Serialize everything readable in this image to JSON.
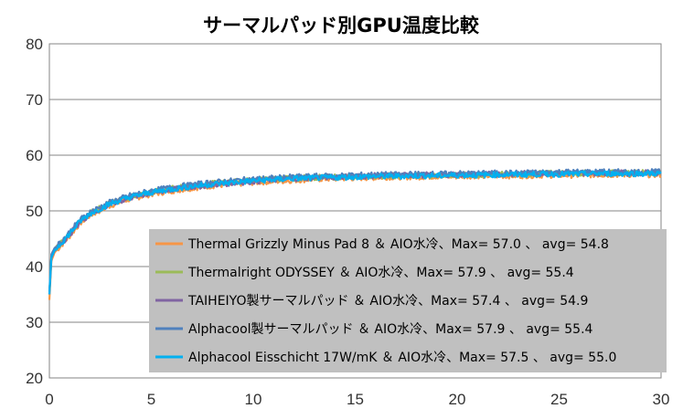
{
  "chart_data": {
    "type": "line",
    "title": "サーマルパッド別GPU温度比較",
    "xlabel": "",
    "ylabel": "",
    "xlim": [
      0,
      30
    ],
    "ylim": [
      20,
      80
    ],
    "x_ticks": [
      "0",
      "5",
      "10",
      "15",
      "20",
      "25",
      "30"
    ],
    "y_ticks": [
      "20",
      "30",
      "40",
      "50",
      "60",
      "70",
      "80"
    ],
    "grid": "horizontal",
    "legend_position": "bottom-right",
    "x": [
      0,
      0.1,
      0.25,
      0.5,
      1,
      1.5,
      2,
      3,
      4,
      5,
      6,
      7,
      8,
      9,
      10,
      11,
      12,
      13,
      14,
      15,
      16,
      17,
      18,
      19,
      20,
      21,
      22,
      23,
      24,
      25,
      26,
      27,
      28,
      29,
      30
    ],
    "series": [
      {
        "name": "Thermal Grizzly Minus Pad 8 ＆ AIO水冷、Max= 57.0 、 avg= 54.8",
        "color": "#f79646",
        "values": [
          34.0,
          41.0,
          42.5,
          43.5,
          45.5,
          47.8,
          49.2,
          51.0,
          52.2,
          53.0,
          53.6,
          54.1,
          54.5,
          54.8,
          55.1,
          55.3,
          55.5,
          55.7,
          55.8,
          55.9,
          56.0,
          56.1,
          56.1,
          56.2,
          56.2,
          56.3,
          56.3,
          56.3,
          56.4,
          56.4,
          56.4,
          56.5,
          56.5,
          56.5,
          56.5
        ]
      },
      {
        "name": "Thermalright ODYSSEY ＆ AIO水冷、Max= 57.9 、 avg= 55.4",
        "color": "#9bbb59",
        "values": [
          35.0,
          41.8,
          43.0,
          44.0,
          46.0,
          48.2,
          49.6,
          51.4,
          52.6,
          53.4,
          54.0,
          54.5,
          54.9,
          55.2,
          55.5,
          55.7,
          55.9,
          56.0,
          56.1,
          56.2,
          56.3,
          56.3,
          56.4,
          56.4,
          56.5,
          56.5,
          56.6,
          56.6,
          56.7,
          56.8,
          56.8,
          56.8,
          56.8,
          56.9,
          56.9
        ]
      },
      {
        "name": "TAIHEIYO製サーマルパッド ＆ AIO水冷、Max= 57.4 、 avg= 54.9",
        "color": "#8064a2",
        "values": [
          35.0,
          41.5,
          42.8,
          43.8,
          45.8,
          48.0,
          49.4,
          51.2,
          52.4,
          53.2,
          53.8,
          54.3,
          54.7,
          55.0,
          55.3,
          55.6,
          55.8,
          56.0,
          56.1,
          56.2,
          56.3,
          56.4,
          56.4,
          56.5,
          56.5,
          56.6,
          56.6,
          56.7,
          56.7,
          56.8,
          56.8,
          56.8,
          56.8,
          56.8,
          56.9
        ]
      },
      {
        "name": "Alphacool製サーマルパッド ＆ AIO水冷、Max= 57.9 、 avg= 55.4",
        "color": "#4f81bd",
        "values": [
          35.5,
          42.2,
          43.3,
          44.2,
          46.2,
          48.4,
          49.8,
          51.6,
          52.8,
          53.6,
          54.2,
          54.7,
          55.1,
          55.4,
          55.7,
          55.9,
          56.1,
          56.2,
          56.3,
          56.4,
          56.5,
          56.5,
          56.6,
          56.6,
          56.7,
          56.7,
          56.8,
          56.8,
          56.9,
          57.0,
          57.0,
          57.0,
          57.0,
          57.0,
          57.0
        ]
      },
      {
        "name": "Alphacool Eisschicht 17W/mK ＆ AIO水冷、Max= 57.5 、 avg= 55.0",
        "color": "#00b0f0",
        "values": [
          35.0,
          41.6,
          42.9,
          43.9,
          45.9,
          48.1,
          49.5,
          51.3,
          52.5,
          53.3,
          53.9,
          54.4,
          54.8,
          55.1,
          55.4,
          55.6,
          55.8,
          55.9,
          56.0,
          56.1,
          56.2,
          56.2,
          56.3,
          56.3,
          56.4,
          56.4,
          56.5,
          56.5,
          56.6,
          56.6,
          56.6,
          56.7,
          56.7,
          56.7,
          56.7
        ]
      }
    ]
  }
}
